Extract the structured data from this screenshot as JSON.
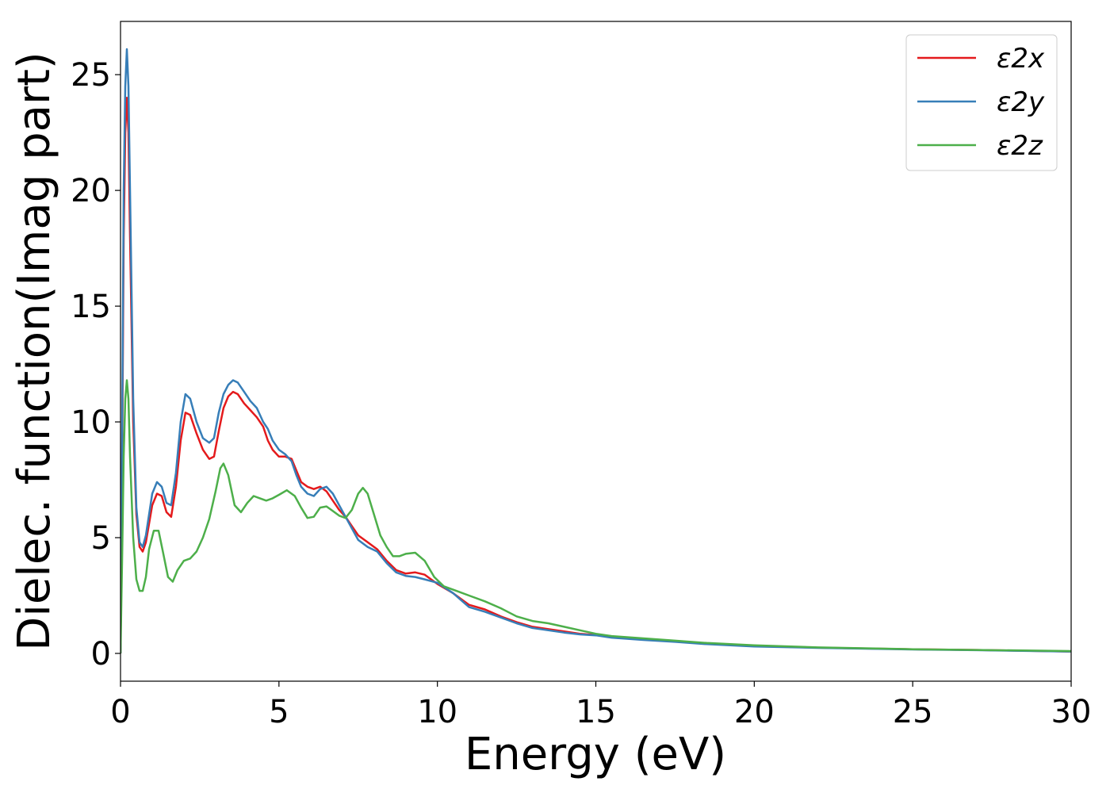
{
  "chart_data": {
    "type": "line",
    "xlabel": "Energy (eV)",
    "ylabel": "Dielec. function(Imag part)",
    "xlim": [
      0,
      30
    ],
    "ylim": [
      -1.2,
      27.3
    ],
    "xticks": [
      0,
      5,
      10,
      15,
      20,
      25,
      30
    ],
    "yticks": [
      0,
      5,
      10,
      15,
      20,
      25
    ],
    "legend_position": "top-right",
    "grid": false,
    "series": [
      {
        "name": "ε2x",
        "color": "#e41a1c",
        "points": [
          [
            0,
            0
          ],
          [
            0.05,
            8
          ],
          [
            0.1,
            18
          ],
          [
            0.15,
            22.5
          ],
          [
            0.2,
            24.0
          ],
          [
            0.25,
            22.5
          ],
          [
            0.3,
            18
          ],
          [
            0.4,
            10
          ],
          [
            0.5,
            6
          ],
          [
            0.6,
            4.6
          ],
          [
            0.7,
            4.4
          ],
          [
            0.8,
            4.8
          ],
          [
            0.9,
            5.6
          ],
          [
            1.0,
            6.4
          ],
          [
            1.15,
            6.9
          ],
          [
            1.3,
            6.8
          ],
          [
            1.45,
            6.1
          ],
          [
            1.6,
            5.9
          ],
          [
            1.75,
            7.2
          ],
          [
            1.9,
            9.2
          ],
          [
            2.05,
            10.4
          ],
          [
            2.2,
            10.3
          ],
          [
            2.4,
            9.5
          ],
          [
            2.6,
            8.8
          ],
          [
            2.8,
            8.4
          ],
          [
            2.95,
            8.5
          ],
          [
            3.1,
            9.6
          ],
          [
            3.25,
            10.6
          ],
          [
            3.4,
            11.1
          ],
          [
            3.55,
            11.3
          ],
          [
            3.7,
            11.2
          ],
          [
            3.9,
            10.8
          ],
          [
            4.1,
            10.5
          ],
          [
            4.3,
            10.2
          ],
          [
            4.5,
            9.8
          ],
          [
            4.65,
            9.2
          ],
          [
            4.8,
            8.8
          ],
          [
            5.0,
            8.5
          ],
          [
            5.2,
            8.5
          ],
          [
            5.4,
            8.4
          ],
          [
            5.55,
            7.9
          ],
          [
            5.7,
            7.4
          ],
          [
            5.9,
            7.2
          ],
          [
            6.1,
            7.1
          ],
          [
            6.3,
            7.2
          ],
          [
            6.5,
            7.0
          ],
          [
            6.7,
            6.6
          ],
          [
            6.9,
            6.2
          ],
          [
            7.1,
            5.9
          ],
          [
            7.3,
            5.5
          ],
          [
            7.5,
            5.1
          ],
          [
            7.8,
            4.8
          ],
          [
            8.1,
            4.5
          ],
          [
            8.4,
            4.0
          ],
          [
            8.7,
            3.6
          ],
          [
            9.0,
            3.45
          ],
          [
            9.3,
            3.5
          ],
          [
            9.6,
            3.4
          ],
          [
            10.0,
            3.0
          ],
          [
            10.5,
            2.6
          ],
          [
            11.0,
            2.1
          ],
          [
            11.5,
            1.9
          ],
          [
            12.0,
            1.6
          ],
          [
            12.5,
            1.35
          ],
          [
            13.0,
            1.15
          ],
          [
            13.5,
            1.05
          ],
          [
            14.0,
            0.95
          ],
          [
            14.5,
            0.85
          ],
          [
            15.0,
            0.8
          ],
          [
            15.5,
            0.7
          ],
          [
            16.5,
            0.6
          ],
          [
            17.5,
            0.52
          ],
          [
            18.5,
            0.42
          ],
          [
            20,
            0.32
          ],
          [
            22,
            0.25
          ],
          [
            25,
            0.18
          ],
          [
            27,
            0.15
          ],
          [
            30,
            0.08
          ]
        ]
      },
      {
        "name": "ε2y",
        "color": "#377eb8",
        "points": [
          [
            0,
            0
          ],
          [
            0.05,
            9
          ],
          [
            0.1,
            20
          ],
          [
            0.15,
            24.5
          ],
          [
            0.2,
            26.1
          ],
          [
            0.25,
            24.5
          ],
          [
            0.3,
            20
          ],
          [
            0.4,
            11
          ],
          [
            0.5,
            6.3
          ],
          [
            0.6,
            4.8
          ],
          [
            0.7,
            4.6
          ],
          [
            0.8,
            5.1
          ],
          [
            0.9,
            6.0
          ],
          [
            1.0,
            6.9
          ],
          [
            1.15,
            7.4
          ],
          [
            1.3,
            7.2
          ],
          [
            1.45,
            6.5
          ],
          [
            1.6,
            6.4
          ],
          [
            1.75,
            7.8
          ],
          [
            1.9,
            10.0
          ],
          [
            2.05,
            11.2
          ],
          [
            2.2,
            11.0
          ],
          [
            2.4,
            10.0
          ],
          [
            2.6,
            9.3
          ],
          [
            2.8,
            9.1
          ],
          [
            2.95,
            9.3
          ],
          [
            3.1,
            10.4
          ],
          [
            3.25,
            11.2
          ],
          [
            3.4,
            11.6
          ],
          [
            3.55,
            11.8
          ],
          [
            3.7,
            11.7
          ],
          [
            3.9,
            11.3
          ],
          [
            4.1,
            10.9
          ],
          [
            4.3,
            10.6
          ],
          [
            4.5,
            10.0
          ],
          [
            4.65,
            9.7
          ],
          [
            4.8,
            9.2
          ],
          [
            5.0,
            8.8
          ],
          [
            5.2,
            8.6
          ],
          [
            5.4,
            8.3
          ],
          [
            5.55,
            7.7
          ],
          [
            5.7,
            7.2
          ],
          [
            5.9,
            6.9
          ],
          [
            6.1,
            6.8
          ],
          [
            6.3,
            7.1
          ],
          [
            6.5,
            7.2
          ],
          [
            6.7,
            6.9
          ],
          [
            6.9,
            6.4
          ],
          [
            7.1,
            5.9
          ],
          [
            7.3,
            5.4
          ],
          [
            7.5,
            4.9
          ],
          [
            7.8,
            4.6
          ],
          [
            8.1,
            4.4
          ],
          [
            8.4,
            3.9
          ],
          [
            8.7,
            3.5
          ],
          [
            9.0,
            3.35
          ],
          [
            9.3,
            3.3
          ],
          [
            9.6,
            3.2
          ],
          [
            10.0,
            3.05
          ],
          [
            10.5,
            2.6
          ],
          [
            11.0,
            2.0
          ],
          [
            11.5,
            1.8
          ],
          [
            12.0,
            1.55
          ],
          [
            12.5,
            1.3
          ],
          [
            13.0,
            1.1
          ],
          [
            13.5,
            1.0
          ],
          [
            14.0,
            0.9
          ],
          [
            14.5,
            0.82
          ],
          [
            15.0,
            0.78
          ],
          [
            15.5,
            0.68
          ],
          [
            16.5,
            0.58
          ],
          [
            17.5,
            0.5
          ],
          [
            18.5,
            0.4
          ],
          [
            20,
            0.3
          ],
          [
            22,
            0.24
          ],
          [
            25,
            0.17
          ],
          [
            27,
            0.14
          ],
          [
            30,
            0.08
          ]
        ]
      },
      {
        "name": "ε2z",
        "color": "#4daf4a",
        "points": [
          [
            0,
            0
          ],
          [
            0.05,
            4
          ],
          [
            0.1,
            8.5
          ],
          [
            0.15,
            11
          ],
          [
            0.2,
            11.8
          ],
          [
            0.25,
            11.0
          ],
          [
            0.3,
            8.5
          ],
          [
            0.4,
            5
          ],
          [
            0.5,
            3.2
          ],
          [
            0.6,
            2.7
          ],
          [
            0.7,
            2.7
          ],
          [
            0.8,
            3.3
          ],
          [
            0.9,
            4.5
          ],
          [
            1.05,
            5.3
          ],
          [
            1.2,
            5.3
          ],
          [
            1.35,
            4.3
          ],
          [
            1.5,
            3.3
          ],
          [
            1.65,
            3.1
          ],
          [
            1.8,
            3.6
          ],
          [
            2.0,
            4.0
          ],
          [
            2.2,
            4.1
          ],
          [
            2.4,
            4.4
          ],
          [
            2.6,
            5.0
          ],
          [
            2.8,
            5.8
          ],
          [
            3.0,
            7.0
          ],
          [
            3.15,
            8.0
          ],
          [
            3.25,
            8.2
          ],
          [
            3.4,
            7.7
          ],
          [
            3.6,
            6.4
          ],
          [
            3.8,
            6.1
          ],
          [
            4.0,
            6.5
          ],
          [
            4.2,
            6.8
          ],
          [
            4.4,
            6.7
          ],
          [
            4.6,
            6.6
          ],
          [
            4.8,
            6.7
          ],
          [
            5.0,
            6.85
          ],
          [
            5.25,
            7.05
          ],
          [
            5.5,
            6.8
          ],
          [
            5.7,
            6.3
          ],
          [
            5.9,
            5.85
          ],
          [
            6.1,
            5.9
          ],
          [
            6.3,
            6.3
          ],
          [
            6.5,
            6.35
          ],
          [
            6.7,
            6.15
          ],
          [
            6.9,
            5.95
          ],
          [
            7.1,
            5.85
          ],
          [
            7.3,
            6.2
          ],
          [
            7.5,
            6.9
          ],
          [
            7.65,
            7.15
          ],
          [
            7.8,
            6.9
          ],
          [
            8.0,
            6.0
          ],
          [
            8.2,
            5.1
          ],
          [
            8.4,
            4.6
          ],
          [
            8.6,
            4.2
          ],
          [
            8.8,
            4.2
          ],
          [
            9.0,
            4.3
          ],
          [
            9.3,
            4.35
          ],
          [
            9.6,
            4.0
          ],
          [
            9.9,
            3.3
          ],
          [
            10.2,
            2.9
          ],
          [
            10.6,
            2.7
          ],
          [
            11.0,
            2.5
          ],
          [
            11.5,
            2.25
          ],
          [
            12.0,
            1.95
          ],
          [
            12.5,
            1.6
          ],
          [
            13.0,
            1.4
          ],
          [
            13.5,
            1.3
          ],
          [
            14.0,
            1.15
          ],
          [
            14.5,
            1.0
          ],
          [
            15.0,
            0.85
          ],
          [
            15.5,
            0.75
          ],
          [
            16.5,
            0.65
          ],
          [
            17.5,
            0.55
          ],
          [
            18.5,
            0.45
          ],
          [
            20,
            0.35
          ],
          [
            22,
            0.26
          ],
          [
            25,
            0.18
          ],
          [
            27,
            0.15
          ],
          [
            30,
            0.1
          ]
        ]
      }
    ]
  }
}
